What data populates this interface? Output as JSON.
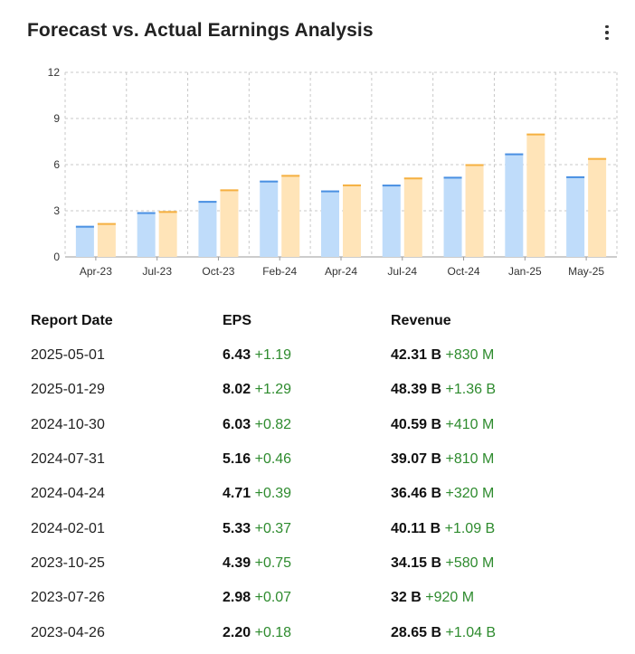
{
  "header": {
    "title": "Forecast vs. Actual Earnings Analysis",
    "menu_icon": "more-vertical-icon"
  },
  "colors": {
    "forecast_fill": "#bfdcfa",
    "forecast_top": "#4a90e2",
    "actual_fill": "#ffe4b8",
    "actual_top": "#f5b041",
    "grid": "#c8c8c8",
    "positive": "#2e8b2e"
  },
  "chart_data": {
    "type": "bar",
    "categories": [
      "Apr-23",
      "Jul-23",
      "Oct-23",
      "Feb-24",
      "Apr-24",
      "Jul-24",
      "Oct-24",
      "Jan-25",
      "May-25"
    ],
    "series": [
      {
        "values": [
          2.02,
          2.91,
          3.64,
          4.96,
          4.32,
          4.7,
          5.21,
          6.73,
          5.24
        ]
      },
      {
        "values": [
          2.2,
          2.98,
          4.39,
          5.33,
          4.71,
          5.16,
          6.03,
          8.02,
          6.43
        ]
      }
    ],
    "yticks": [
      0,
      3,
      6,
      9,
      12
    ],
    "ylim": [
      0,
      12
    ],
    "grid": true,
    "title": "",
    "xlabel": "",
    "ylabel": ""
  },
  "table": {
    "headers": [
      "Report Date",
      "EPS",
      "Revenue"
    ],
    "rows": [
      {
        "date": "2025-05-01",
        "eps": "6.43",
        "eps_diff": "+1.19",
        "rev": "42.31 B",
        "rev_diff": "+830 M"
      },
      {
        "date": "2025-01-29",
        "eps": "8.02",
        "eps_diff": "+1.29",
        "rev": "48.39 B",
        "rev_diff": "+1.36 B"
      },
      {
        "date": "2024-10-30",
        "eps": "6.03",
        "eps_diff": "+0.82",
        "rev": "40.59 B",
        "rev_diff": "+410 M"
      },
      {
        "date": "2024-07-31",
        "eps": "5.16",
        "eps_diff": "+0.46",
        "rev": "39.07 B",
        "rev_diff": "+810 M"
      },
      {
        "date": "2024-04-24",
        "eps": "4.71",
        "eps_diff": "+0.39",
        "rev": "36.46 B",
        "rev_diff": "+320 M"
      },
      {
        "date": "2024-02-01",
        "eps": "5.33",
        "eps_diff": "+0.37",
        "rev": "40.11 B",
        "rev_diff": "+1.09 B"
      },
      {
        "date": "2023-10-25",
        "eps": "4.39",
        "eps_diff": "+0.75",
        "rev": "34.15 B",
        "rev_diff": "+580 M"
      },
      {
        "date": "2023-07-26",
        "eps": "2.98",
        "eps_diff": "+0.07",
        "rev": "32 B",
        "rev_diff": "+920 M"
      },
      {
        "date": "2023-04-26",
        "eps": "2.20",
        "eps_diff": "+0.18",
        "rev": "28.65 B",
        "rev_diff": "+1.04 B"
      }
    ]
  }
}
